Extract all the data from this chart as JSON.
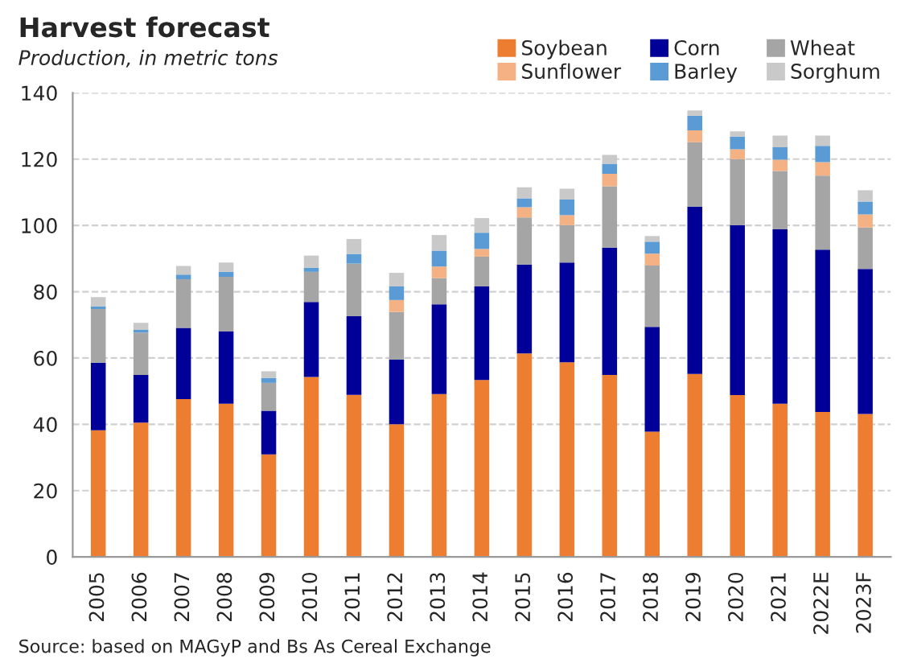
{
  "chart_data": {
    "type": "bar",
    "stacked": true,
    "title": "Harvest forecast",
    "subtitle": "Production, in metric tons",
    "categories": [
      "2005",
      "2006",
      "2007",
      "2008",
      "2009",
      "2010",
      "2011",
      "2012",
      "2013",
      "2014",
      "2015",
      "2016",
      "2017",
      "2018",
      "2019",
      "2020",
      "2021",
      "2022E",
      "2023F"
    ],
    "series": [
      {
        "name": "Soybean",
        "color": "#ed7d31",
        "values": [
          38.2,
          40.5,
          47.6,
          46.2,
          30.9,
          54.3,
          48.9,
          40.0,
          49.1,
          53.4,
          61.4,
          58.7,
          54.9,
          37.8,
          55.2,
          48.8,
          46.2,
          43.7,
          43.1
        ]
      },
      {
        "name": "Corn",
        "color": "#000099",
        "values": [
          20.4,
          14.4,
          21.5,
          21.8,
          13.2,
          22.6,
          23.7,
          19.5,
          27.1,
          28.2,
          26.8,
          30.1,
          38.4,
          31.6,
          50.5,
          51.3,
          52.6,
          49.0,
          43.8
        ]
      },
      {
        "name": "Wheat",
        "color": "#a5a5a5",
        "values": [
          16.2,
          12.8,
          14.7,
          16.5,
          8.4,
          9.1,
          15.9,
          14.4,
          7.9,
          9.0,
          14.2,
          11.3,
          18.5,
          18.5,
          19.4,
          19.9,
          17.6,
          22.3,
          12.5
        ]
      },
      {
        "name": "Sunflower",
        "color": "#f4b183",
        "values": [
          0,
          0,
          0,
          0,
          0,
          0,
          0,
          3.6,
          3.5,
          2.3,
          3.1,
          3.0,
          3.8,
          3.6,
          3.6,
          3.0,
          3.4,
          4.1,
          3.9
        ]
      },
      {
        "name": "Barley",
        "color": "#5b9bd5",
        "values": [
          0.8,
          0.8,
          1.4,
          1.5,
          1.5,
          1.2,
          2.9,
          4.1,
          4.8,
          4.9,
          2.7,
          4.7,
          3.0,
          3.6,
          4.4,
          3.8,
          3.8,
          4.9,
          3.9
        ]
      },
      {
        "name": "Sorghum",
        "color": "#c9c9c9",
        "values": [
          2.8,
          2.1,
          2.6,
          2.8,
          2.0,
          3.7,
          4.5,
          4.1,
          4.7,
          4.4,
          3.3,
          3.3,
          2.7,
          1.7,
          1.6,
          1.6,
          3.5,
          3.1,
          3.4
        ]
      }
    ],
    "ylim": [
      0,
      140
    ],
    "yticks": [
      0,
      20,
      40,
      60,
      80,
      100,
      120,
      140
    ],
    "grid": "y",
    "legend": "top right",
    "annotations": [
      "Source: based on MAGyP and Bs As Cereal Exchange"
    ]
  }
}
